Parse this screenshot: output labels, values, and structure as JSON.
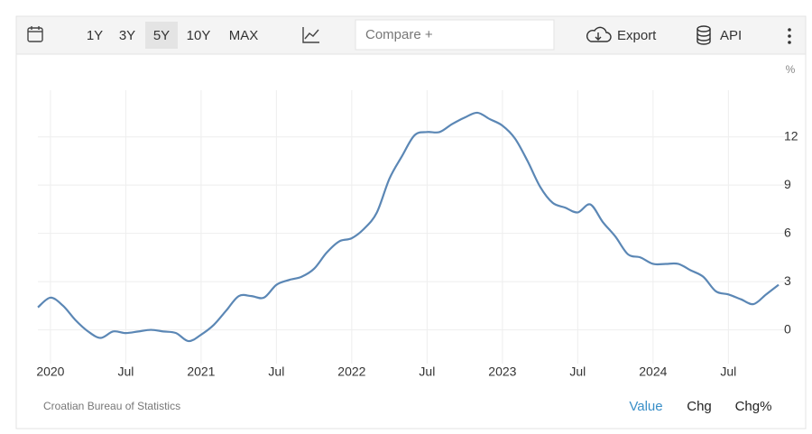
{
  "toolbar": {
    "ranges": [
      "1Y",
      "3Y",
      "5Y",
      "10Y",
      "MAX"
    ],
    "compare": "Compare +",
    "export": "Export",
    "api": "API"
  },
  "chart_data": {
    "type": "line",
    "ylabel": "%",
    "categories": [
      null,
      "2020",
      null,
      null,
      null,
      null,
      null,
      "Jul",
      null,
      null,
      null,
      null,
      null,
      "2021",
      null,
      null,
      null,
      null,
      null,
      "Jul",
      null,
      null,
      null,
      null,
      null,
      "2022",
      null,
      null,
      null,
      null,
      null,
      "Jul",
      null,
      null,
      null,
      null,
      null,
      "2023",
      null,
      null,
      null,
      null,
      null,
      "Jul",
      null,
      null,
      null,
      null,
      null,
      "2024",
      null,
      null,
      null,
      null,
      null,
      "Jul",
      null,
      null,
      null,
      null
    ],
    "series": [
      {
        "color": "#5b87b5",
        "values": [
          1.4,
          2.0,
          1.5,
          0.6,
          -0.1,
          -0.5,
          -0.1,
          -0.2,
          -0.1,
          0.0,
          -0.1,
          -0.2,
          -0.7,
          -0.3,
          0.3,
          1.2,
          2.1,
          2.1,
          2.0,
          2.8,
          3.1,
          3.3,
          3.8,
          4.8,
          5.5,
          5.7,
          6.3,
          7.3,
          9.4,
          10.8,
          12.1,
          12.3,
          12.3,
          12.8,
          13.2,
          13.5,
          13.1,
          12.7,
          11.9,
          10.5,
          8.9,
          7.9,
          7.6,
          7.3,
          7.8,
          6.7,
          5.8,
          4.7,
          4.5,
          4.1,
          4.1,
          4.1,
          3.7,
          3.3,
          2.4,
          2.2,
          1.9,
          1.6,
          2.2,
          2.8
        ]
      }
    ],
    "ylim": [
      -2.1,
      14.9
    ],
    "yticks": [
      0,
      3,
      6,
      9,
      12
    ],
    "grid": true
  },
  "source": "Croatian Bureau of Statistics",
  "tabs": [
    "Value",
    "Chg",
    "Chg%"
  ]
}
